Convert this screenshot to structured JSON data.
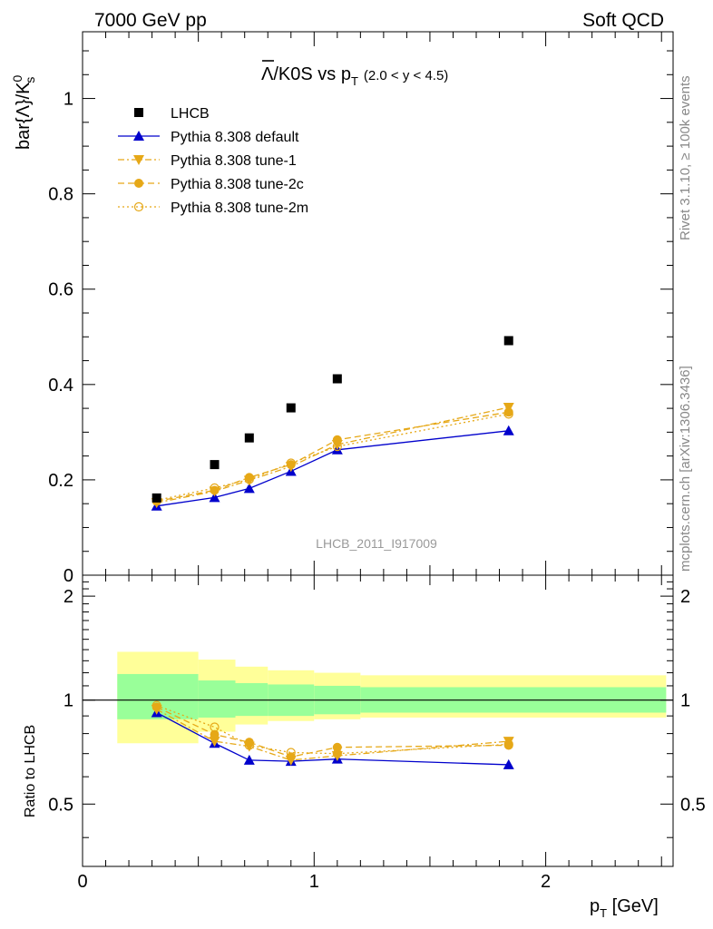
{
  "header": {
    "left": "7000 GeV pp",
    "right": "Soft QCD"
  },
  "side": {
    "rivet": "Rivet 3.1.10, ≥ 100k events",
    "mcplots": "mcplots.cern.ch [arXiv:1306.3436]"
  },
  "title": {
    "main": "Λ/K0S vs p",
    "sub": "T",
    "range": "(2.0 < y < 4.5)"
  },
  "ylabel_main": "bar{Λ}/K",
  "ylabel_sup": "0",
  "ylabel_sub": "s",
  "ylabel_ratio": "Ratio to LHCB",
  "xlabel_main": "p",
  "xlabel_sub": "T",
  "xlabel_unit": " [GeV]",
  "watermark": "LHCB_2011_I917009",
  "chart_data": {
    "type": "scatter",
    "xlim": [
      0,
      2.55
    ],
    "ylim": [
      0,
      1.14
    ],
    "ratio_ylim": [
      0.33,
      2.3
    ],
    "x_ticks": [
      "0",
      "1",
      "2"
    ],
    "y_ticks": [
      "0",
      "0.2",
      "0.4",
      "0.6",
      "0.8",
      "1"
    ],
    "ratio_ticks": [
      "0.5",
      "1",
      "2"
    ],
    "x": [
      0.32,
      0.57,
      0.72,
      0.9,
      1.1,
      1.84
    ],
    "bands": [
      {
        "x0": 0.15,
        "x1": 0.5,
        "y1": [
          0.88,
          1.19
        ],
        "y2": [
          0.75,
          1.38
        ]
      },
      {
        "x0": 0.5,
        "x1": 0.66,
        "y1": [
          0.89,
          1.14
        ],
        "y2": [
          0.81,
          1.31
        ]
      },
      {
        "x0": 0.66,
        "x1": 0.8,
        "y1": [
          0.9,
          1.12
        ],
        "y2": [
          0.85,
          1.25
        ]
      },
      {
        "x0": 0.8,
        "x1": 1.0,
        "y1": [
          0.9,
          1.11
        ],
        "y2": [
          0.87,
          1.22
        ]
      },
      {
        "x0": 1.0,
        "x1": 1.2,
        "y1": [
          0.91,
          1.1
        ],
        "y2": [
          0.88,
          1.2
        ]
      },
      {
        "x0": 1.2,
        "x1": 2.52,
        "y1": [
          0.92,
          1.09
        ],
        "y2": [
          0.89,
          1.18
        ]
      }
    ],
    "series": [
      {
        "name": "LHCB",
        "color": "#000000",
        "marker": "square",
        "line": "none",
        "values": [
          0.162,
          0.232,
          0.288,
          0.351,
          0.412,
          0.492
        ],
        "ratio": [
          1,
          1,
          1,
          1,
          1,
          1
        ]
      },
      {
        "name": "Pythia 8.308 default",
        "color": "#0000cc",
        "marker": "triangle-up",
        "line": "solid",
        "values": [
          0.145,
          0.163,
          0.182,
          0.218,
          0.263,
          0.303
        ],
        "ratio": [
          0.92,
          0.75,
          0.67,
          0.665,
          0.675,
          0.65
        ]
      },
      {
        "name": "Pythia 8.308 tune-1",
        "color": "#e6a817",
        "marker": "triangle-down",
        "line": "dashdot",
        "values": [
          0.152,
          0.176,
          0.199,
          0.228,
          0.274,
          0.352
        ],
        "ratio": [
          0.94,
          0.76,
          0.735,
          0.67,
          0.69,
          0.76
        ]
      },
      {
        "name": "Pythia 8.308 tune-2c",
        "color": "#e6a817",
        "marker": "circle-filled",
        "line": "dashed",
        "values": [
          0.155,
          0.178,
          0.205,
          0.232,
          0.284,
          0.342
        ],
        "ratio": [
          0.955,
          0.795,
          0.755,
          0.685,
          0.73,
          0.74
        ]
      },
      {
        "name": "Pythia 8.308 tune-2m",
        "color": "#e6a817",
        "marker": "circle-open",
        "line": "dotted",
        "values": [
          0.157,
          0.183,
          0.201,
          0.235,
          0.27,
          0.338
        ],
        "ratio": [
          0.965,
          0.835,
          0.74,
          0.705,
          0.7,
          0.745
        ]
      }
    ]
  }
}
